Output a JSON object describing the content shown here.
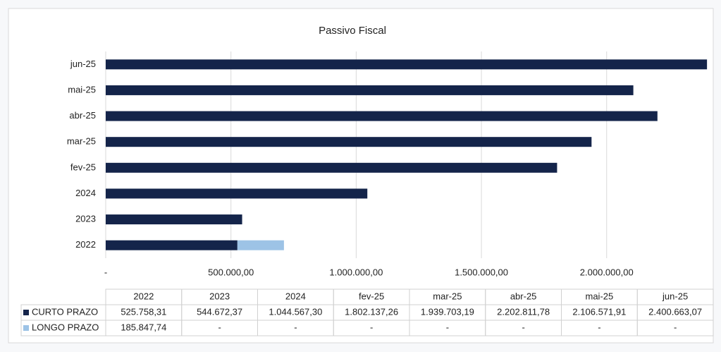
{
  "chart_data": {
    "type": "hbar_stacked",
    "title": "Passivo Fiscal",
    "categories": [
      "2022",
      "2023",
      "2024",
      "fev-25",
      "mar-25",
      "abr-25",
      "mai-25",
      "jun-25"
    ],
    "series": [
      {
        "name": "CURTO PRAZO",
        "color": "#14244a",
        "values": [
          525758.31,
          544672.37,
          1044567.3,
          1802137.26,
          1939703.19,
          2202811.78,
          2106571.91,
          2400663.07
        ],
        "value_labels": [
          "525.758,31",
          "544.672,37",
          "1.044.567,30",
          "1.802.137,26",
          "1.939.703,19",
          "2.202.811,78",
          "2.106.571,91",
          "2.400.663,07"
        ]
      },
      {
        "name": "LONGO PRAZO",
        "color": "#9dc3e6",
        "values": [
          185847.74,
          0,
          0,
          0,
          0,
          0,
          0,
          0
        ],
        "value_labels": [
          "185.847,74",
          "-",
          "-",
          "-",
          "-",
          "-",
          "-",
          "-"
        ]
      }
    ],
    "xlim": [
      0,
      2420000
    ],
    "xticks": [
      {
        "value": 0,
        "label": "-"
      },
      {
        "value": 500000,
        "label": "500.000,00"
      },
      {
        "value": 1000000,
        "label": "1.000.000,00"
      },
      {
        "value": 1500000,
        "label": "1.500.000,00"
      },
      {
        "value": 2000000,
        "label": "2.000.000,00"
      }
    ],
    "grid": true
  }
}
